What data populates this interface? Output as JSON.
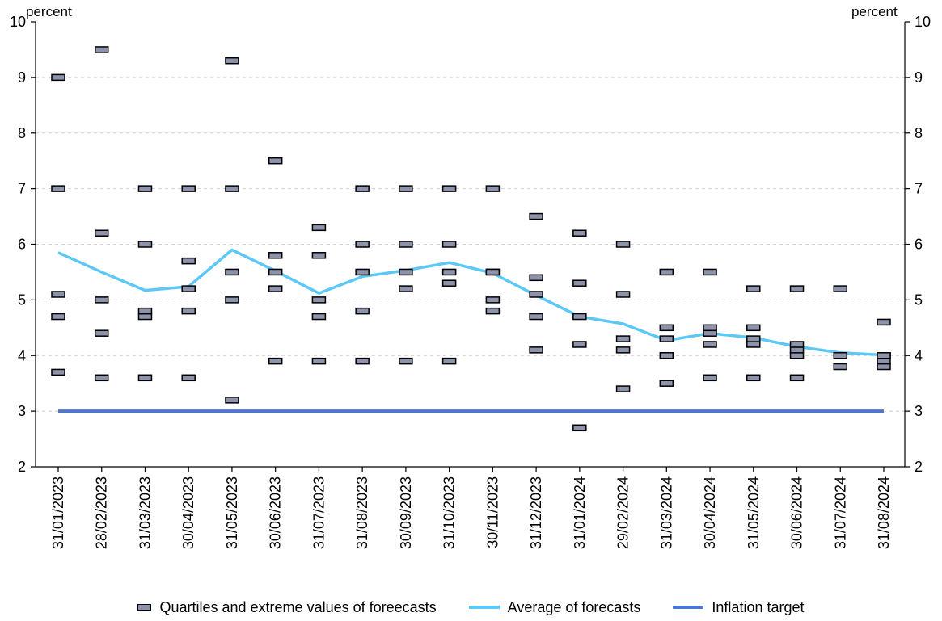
{
  "chart_data": {
    "type": "scatter",
    "y_unit_left": "percent",
    "y_unit_right": "percent",
    "ylim": [
      2,
      10
    ],
    "yticks": [
      2,
      3,
      4,
      5,
      6,
      7,
      8,
      9,
      10
    ],
    "grid": true,
    "legend_position": "bottom-center",
    "categories": [
      "31/01/2023",
      "28/02/2023",
      "31/03/2023",
      "30/04/2023",
      "31/05/2023",
      "30/06/2023",
      "31/07/2023",
      "31/08/2023",
      "30/09/2023",
      "31/10/2023",
      "30/11/2023",
      "31/12/2023",
      "31/01/2024",
      "29/02/2024",
      "31/03/2024",
      "30/04/2024",
      "31/05/2024",
      "30/06/2024",
      "31/07/2024",
      "31/08/2024"
    ],
    "series": [
      {
        "name": "Quartiles and extreme values of foreecasts",
        "kind": "markers",
        "color": "#8d93aa",
        "values": [
          [
            3.7,
            4.7,
            5.1,
            7.0,
            9.0
          ],
          [
            3.6,
            4.4,
            5.0,
            6.2,
            9.5
          ],
          [
            3.6,
            4.7,
            4.8,
            6.0,
            7.0
          ],
          [
            3.6,
            4.8,
            5.2,
            5.7,
            7.0
          ],
          [
            3.2,
            5.0,
            5.5,
            7.0,
            9.3
          ],
          [
            3.9,
            5.2,
            5.5,
            5.8,
            7.5
          ],
          [
            3.9,
            4.7,
            5.0,
            5.8,
            6.3
          ],
          [
            3.9,
            4.8,
            5.5,
            6.0,
            7.0
          ],
          [
            3.9,
            5.2,
            5.5,
            6.0,
            7.0
          ],
          [
            3.9,
            5.3,
            5.5,
            6.0,
            7.0
          ],
          [
            4.8,
            5.0,
            5.5,
            5.5,
            7.0
          ],
          [
            4.1,
            4.7,
            5.1,
            5.4,
            6.5
          ],
          [
            2.7,
            4.2,
            4.7,
            5.3,
            6.2
          ],
          [
            3.4,
            4.1,
            4.3,
            5.1,
            6.0
          ],
          [
            3.5,
            4.0,
            4.3,
            4.5,
            5.5
          ],
          [
            3.6,
            4.2,
            4.4,
            4.5,
            5.5
          ],
          [
            3.6,
            4.2,
            4.3,
            4.5,
            5.2
          ],
          [
            3.6,
            4.0,
            4.1,
            4.2,
            5.2
          ],
          [
            3.8,
            4.0,
            4.0,
            4.0,
            5.2
          ],
          [
            3.8,
            3.9,
            4.0,
            4.0,
            4.6
          ]
        ]
      },
      {
        "name": "Average of forecasts",
        "kind": "line",
        "color": "#5bc8f5",
        "values": [
          5.85,
          5.5,
          5.17,
          5.24,
          5.9,
          5.52,
          5.12,
          5.42,
          5.53,
          5.67,
          5.48,
          5.08,
          4.7,
          4.57,
          4.27,
          4.4,
          4.32,
          4.16,
          4.05,
          4.01
        ]
      },
      {
        "name": "Inflation target",
        "kind": "line",
        "color": "#4a78d4",
        "values": [
          3,
          3,
          3,
          3,
          3,
          3,
          3,
          3,
          3,
          3,
          3,
          3,
          3,
          3,
          3,
          3,
          3,
          3,
          3,
          3
        ]
      }
    ]
  }
}
